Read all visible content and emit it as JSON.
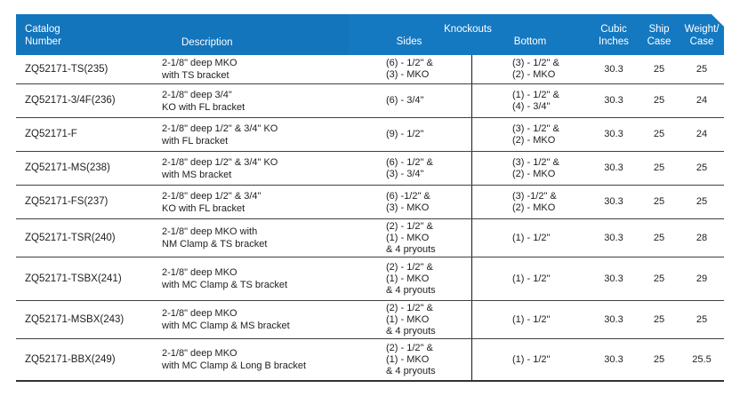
{
  "colors": {
    "header_bg": "#1477BE",
    "header_text": "#FFFFFF",
    "body_text": "#1E1E1E",
    "grid_line": "#404040"
  },
  "table": {
    "header": {
      "catalog_line1": "Catalog",
      "catalog_line2": "Number",
      "description": "Description",
      "knockouts": "Knockouts",
      "sides": "Sides",
      "bottom": "Bottom",
      "cubic_line1": "Cubic",
      "cubic_line2": "Inches",
      "ship_line1": "Ship",
      "ship_line2": "Case",
      "weight_line1": "Weight/",
      "weight_line2": "Case"
    },
    "rows": [
      {
        "catalog": "ZQ52171-TS(235)",
        "description": [
          "2-1/8\" deep MKO",
          "with TS bracket"
        ],
        "sides": [
          "(6) - 1/2\" &",
          "(3) - MKO"
        ],
        "bottom": [
          "(3) - 1/2\" &",
          "(2) - MKO"
        ],
        "cubic": "30.3",
        "ship": "25",
        "weight": "25"
      },
      {
        "catalog": "ZQ52171-3/4F(236)",
        "description": [
          "2-1/8\" deep 3/4\"",
          "KO with FL bracket"
        ],
        "sides": [
          "(6) - 3/4\""
        ],
        "bottom": [
          "(1) - 1/2\" &",
          "(4) - 3/4\""
        ],
        "cubic": "30.3",
        "ship": "25",
        "weight": "24"
      },
      {
        "catalog": "ZQ52171-F",
        "description": [
          "2-1/8\" deep 1/2\" & 3/4\" KO",
          "with FL bracket"
        ],
        "sides": [
          "(9) - 1/2\""
        ],
        "bottom": [
          "(3) - 1/2\" &",
          "(2) - MKO"
        ],
        "cubic": "30.3",
        "ship": "25",
        "weight": "24"
      },
      {
        "catalog": "ZQ52171-MS(238)",
        "description": [
          "2-1/8\" deep 1/2\" & 3/4\" KO",
          "with MS bracket"
        ],
        "sides": [
          "(6) - 1/2\" &",
          "(3) - 3/4\""
        ],
        "bottom": [
          "(3) - 1/2\" &",
          "(2) - MKO"
        ],
        "cubic": "30.3",
        "ship": "25",
        "weight": "25"
      },
      {
        "catalog": "ZQ52171-FS(237)",
        "description": [
          "2-1/8\" deep 1/2\" & 3/4\"",
          "KO with FL bracket"
        ],
        "sides": [
          "(6) -1/2\" &",
          "(3) - MKO"
        ],
        "bottom": [
          "(3) -1/2\" &",
          "(2) - MKO"
        ],
        "cubic": "30.3",
        "ship": "25",
        "weight": "25"
      },
      {
        "catalog": "ZQ52171-TSR(240)",
        "description": [
          "2-1/8\" deep MKO with",
          "NM Clamp & TS bracket"
        ],
        "sides": [
          "(2) - 1/2\" &",
          "(1) - MKO",
          "& 4 pryouts"
        ],
        "bottom": [
          "(1) - 1/2\""
        ],
        "cubic": "30.3",
        "ship": "25",
        "weight": "28"
      },
      {
        "catalog": "ZQ52171-TSBX(241)",
        "description": [
          "2-1/8\" deep MKO",
          "with MC Clamp & TS bracket"
        ],
        "sides": [
          "(2) - 1/2\" &",
          "(1) - MKO",
          "& 4 pryouts"
        ],
        "bottom": [
          "(1) - 1/2\""
        ],
        "cubic": "30.3",
        "ship": "25",
        "weight": "29"
      },
      {
        "catalog": "ZQ52171-MSBX(243)",
        "description": [
          "2-1/8\" deep MKO",
          "with MC Clamp & MS bracket"
        ],
        "sides": [
          "(2) - 1/2\" &",
          "(1) - MKO",
          "& 4 pryouts"
        ],
        "bottom": [
          "(1) - 1/2\""
        ],
        "cubic": "30.3",
        "ship": "25",
        "weight": "25"
      },
      {
        "catalog": "ZQ52171-BBX(249)",
        "description": [
          "2-1/8\" deep MKO",
          "with MC Clamp & Long B bracket"
        ],
        "sides": [
          "(2) - 1/2\" &",
          "(1) - MKO",
          "& 4 pryouts"
        ],
        "bottom": [
          "(1) - 1/2\""
        ],
        "cubic": "30.3",
        "ship": "25",
        "weight": "25.5"
      }
    ]
  }
}
